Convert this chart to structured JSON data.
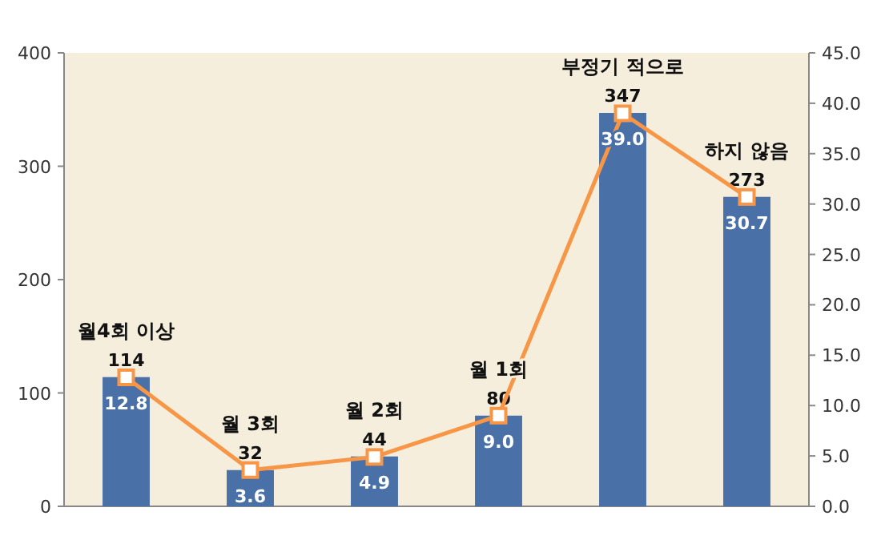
{
  "chart_data": {
    "type": "bar",
    "categories": [
      "월4회 이상",
      "월 3회",
      "월 2회",
      "월 1회",
      "부정기 적으로",
      "하지 않음"
    ],
    "series": [
      {
        "color": "#4a70a8",
        "values": [
          114,
          32,
          44,
          80,
          347,
          273
        ],
        "value_labels": [
          "114",
          "32",
          "44",
          "80",
          "347",
          "273"
        ]
      },
      {
        "type": "line",
        "axis": "y2",
        "color": "#f79646",
        "marker": "square",
        "values": [
          12.8,
          3.6,
          4.9,
          9.0,
          39.0,
          30.7
        ],
        "value_labels": [
          "12.8",
          "3.6",
          "4.9",
          "9.0",
          "39.0",
          "30.7"
        ]
      }
    ],
    "ylim": [
      0,
      400
    ],
    "yticks": [
      0,
      100,
      200,
      300,
      400
    ],
    "y2lim": [
      0,
      45
    ],
    "y2ticks": [
      {
        "value": 0,
        "label": "0.0"
      },
      {
        "value": 5,
        "label": "5.0"
      },
      {
        "value": 10,
        "label": "10.0"
      },
      {
        "value": 15,
        "label": "15.0"
      },
      {
        "value": 20,
        "label": "20.0"
      },
      {
        "value": 25,
        "label": "25.0"
      },
      {
        "value": 30,
        "label": "30.0"
      },
      {
        "value": 35,
        "label": "35.0"
      },
      {
        "value": 40,
        "label": "40.0"
      },
      {
        "value": 45,
        "label": "45.0"
      }
    ],
    "grid": false
  }
}
